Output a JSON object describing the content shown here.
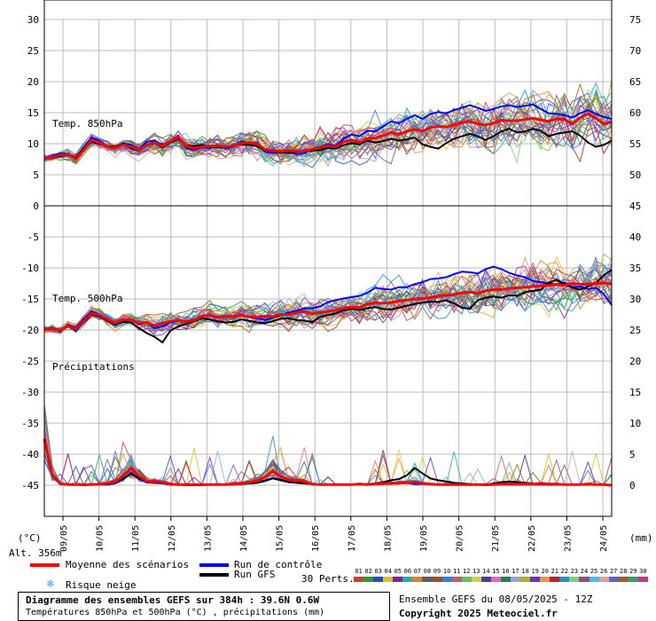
{
  "chart_data": {
    "type": "line",
    "title": "Diagramme des ensembles GEFS sur 384h : 39.6N 0.6W",
    "subtitle": "Températures 850hPa et 500hPa (°C) , précipitations (mm)",
    "dates": [
      "09/05",
      "10/05",
      "11/05",
      "12/05",
      "13/05",
      "14/05",
      "15/05",
      "16/05",
      "17/05",
      "18/05",
      "19/05",
      "20/05",
      "21/05",
      "22/05",
      "23/05",
      "24/05"
    ],
    "left_axis": {
      "unit": "(°C)",
      "ticks": [
        30,
        25,
        20,
        15,
        10,
        5,
        0,
        -5,
        -10,
        -15,
        -20,
        -25,
        -30,
        -35,
        -40,
        -45
      ]
    },
    "right_axis": {
      "unit": "(mm)",
      "ticks": [
        75,
        70,
        65,
        60,
        55,
        50,
        45,
        40,
        35,
        30,
        25,
        20,
        15,
        10,
        5,
        0
      ]
    },
    "panels": [
      {
        "name": "Temp. 850hPa",
        "ylim": [
          0,
          30
        ],
        "mean": [
          7.6,
          7.8,
          8.2,
          8.3,
          7.5,
          9.0,
          10.6,
          10.2,
          9.5,
          9.3,
          9.8,
          9.5,
          9.0,
          9.8,
          10.2,
          9.6,
          10.4,
          11.1,
          9.6,
          9.3,
          9.5,
          9.6,
          9.7,
          9.5,
          9.6,
          10.1,
          10.2,
          10.0,
          9.1,
          8.9,
          8.8,
          8.9,
          8.8,
          8.9,
          9.1,
          9.4,
          9.7,
          9.5,
          10.3,
          10.6,
          10.2,
          10.8,
          10.9,
          11.3,
          11.8,
          11.5,
          12.0,
          12.3,
          12.0,
          12.6,
          12.8,
          12.7,
          13.0,
          13.4,
          13.6,
          13.2,
          13.0,
          13.3,
          13.8,
          13.7,
          13.7,
          13.9,
          14.1,
          13.8,
          13.6,
          14.0,
          13.9,
          13.2,
          14.2,
          14.8,
          14.1,
          13.2,
          13.5
        ],
        "control": [
          7.6,
          8.0,
          8.5,
          8.4,
          7.5,
          9.4,
          11.0,
          10.5,
          9.6,
          9.2,
          10.1,
          9.8,
          9.1,
          10.3,
          10.5,
          9.8,
          10.3,
          11.3,
          9.3,
          9.0,
          9.4,
          9.3,
          9.8,
          9.2,
          9.5,
          10.4,
          10.1,
          10.2,
          8.7,
          8.5,
          8.6,
          8.7,
          8.3,
          8.5,
          9.2,
          9.5,
          9.9,
          9.7,
          10.8,
          11.5,
          11.2,
          12.1,
          12.0,
          12.8,
          13.6,
          13.3,
          14.0,
          14.6,
          14.0,
          14.8,
          15.1,
          14.9,
          15.4,
          15.8,
          16.2,
          15.8,
          15.3,
          15.6,
          16.0,
          16.2,
          15.9,
          16.1,
          16.3,
          15.6,
          14.9,
          14.8,
          14.6,
          14.2,
          14.9,
          15.4,
          14.8,
          14.3,
          14.0
        ],
        "gfs": [
          7.6,
          7.7,
          8.0,
          8.2,
          7.8,
          9.3,
          10.3,
          10.0,
          9.6,
          9.5,
          9.9,
          9.2,
          8.9,
          9.7,
          10.1,
          9.4,
          10.2,
          10.8,
          9.7,
          9.6,
          9.8,
          9.5,
          9.4,
          9.4,
          9.7,
          9.9,
          9.8,
          9.6,
          9.0,
          8.8,
          8.6,
          8.5,
          8.7,
          8.8,
          8.9,
          9.0,
          9.3,
          9.2,
          9.8,
          10.1,
          9.9,
          10.5,
          10.2,
          10.4,
          10.8,
          10.5,
          10.7,
          11.0,
          9.9,
          9.5,
          9.2,
          10.1,
          10.8,
          11.2,
          11.6,
          11.2,
          10.6,
          11.2,
          12.0,
          12.4,
          11.8,
          12.0,
          12.4,
          12.1,
          11.2,
          11.6,
          11.8,
          12.0,
          11.3,
          10.2,
          9.5,
          9.8,
          10.5
        ]
      },
      {
        "name": "Temp. 500hPa",
        "ylim": [
          -25,
          0
        ],
        "mean": [
          -19.9,
          -19.8,
          -20.1,
          -19.3,
          -19.9,
          -18.6,
          -17.3,
          -17.6,
          -18.3,
          -18.9,
          -18.3,
          -18.3,
          -18.9,
          -18.8,
          -19.3,
          -18.9,
          -18.6,
          -18.4,
          -18.7,
          -18.4,
          -17.8,
          -17.6,
          -18.0,
          -17.8,
          -17.9,
          -17.6,
          -17.9,
          -17.9,
          -17.8,
          -17.8,
          -17.5,
          -17.5,
          -17.2,
          -17.0,
          -17.4,
          -17.2,
          -17.0,
          -16.8,
          -16.5,
          -16.3,
          -16.4,
          -15.8,
          -15.6,
          -15.7,
          -15.6,
          -15.3,
          -15.2,
          -15.0,
          -14.9,
          -14.8,
          -14.5,
          -14.4,
          -14.3,
          -14.0,
          -13.9,
          -14.1,
          -13.7,
          -13.5,
          -13.5,
          -13.3,
          -13.2,
          -13.1,
          -13.0,
          -12.9,
          -12.8,
          -12.7,
          -12.8,
          -12.5,
          -12.6,
          -12.6,
          -12.5,
          -12.4,
          -12.6
        ],
        "control": [
          -19.9,
          -19.6,
          -20.3,
          -19.1,
          -19.7,
          -18.2,
          -17.0,
          -17.5,
          -18.4,
          -19.2,
          -18.6,
          -18.3,
          -19.1,
          -18.8,
          -19.7,
          -19.4,
          -18.8,
          -18.5,
          -18.6,
          -18.3,
          -17.8,
          -17.6,
          -17.9,
          -17.7,
          -17.8,
          -17.5,
          -17.9,
          -18.1,
          -18.4,
          -18.0,
          -17.6,
          -17.2,
          -16.9,
          -16.5,
          -16.5,
          -16.2,
          -15.5,
          -15.2,
          -14.9,
          -14.7,
          -14.5,
          -14.0,
          -13.2,
          -13.4,
          -13.5,
          -13.1,
          -13.1,
          -12.6,
          -12.3,
          -11.8,
          -11.7,
          -11.5,
          -11.0,
          -10.6,
          -10.7,
          -10.9,
          -10.2,
          -9.8,
          -10.2,
          -10.8,
          -11.2,
          -11.5,
          -12.1,
          -12.3,
          -12.5,
          -12.7,
          -12.4,
          -13.1,
          -13.0,
          -13.4,
          -13.2,
          -14.2,
          -16.0
        ],
        "gfs": [
          -19.8,
          -19.7,
          -20.0,
          -19.4,
          -20.1,
          -18.8,
          -17.5,
          -17.8,
          -18.5,
          -19.1,
          -18.7,
          -18.8,
          -19.7,
          -20.5,
          -21.1,
          -22.0,
          -20.1,
          -19.4,
          -19.0,
          -18.6,
          -18.1,
          -18.3,
          -18.6,
          -18.8,
          -18.7,
          -18.3,
          -18.5,
          -18.8,
          -18.9,
          -18.6,
          -18.2,
          -18.1,
          -18.4,
          -18.5,
          -18.7,
          -17.9,
          -17.6,
          -17.3,
          -16.8,
          -16.6,
          -16.8,
          -16.5,
          -16.3,
          -16.6,
          -16.7,
          -16.4,
          -16.1,
          -15.8,
          -15.6,
          -15.4,
          -15.5,
          -15.2,
          -15.7,
          -16.4,
          -16.6,
          -15.2,
          -14.8,
          -14.6,
          -14.8,
          -14.4,
          -14.5,
          -13.9,
          -13.7,
          -13.5,
          -12.4,
          -11.9,
          -12.6,
          -13.2,
          -13.5,
          -13.0,
          -12.4,
          -11.2,
          -10.3
        ]
      },
      {
        "name": "Précipitations",
        "ylim_mm": [
          0,
          20
        ],
        "mean": [
          7.5,
          1.8,
          0.3,
          0.1,
          0.1,
          0.1,
          0.1,
          0.2,
          0.3,
          0.6,
          1.5,
          2.8,
          1.5,
          0.7,
          0.6,
          0.5,
          0.2,
          0.1,
          0.1,
          0.1,
          0.1,
          0.1,
          0.1,
          0.1,
          0.2,
          0.3,
          0.5,
          0.7,
          1.3,
          2.3,
          1.4,
          0.9,
          0.8,
          0.6,
          0.2,
          0.1,
          0.1,
          0.1,
          0.1,
          0.1,
          0.2,
          0.1,
          0.2,
          0.3,
          0.3,
          0.4,
          0.4,
          0.5,
          0.3,
          0.2,
          0.1,
          0.1,
          0.1,
          0.1,
          0.1,
          0.1,
          0.1,
          0.1,
          0.2,
          0.2,
          0.2,
          0.2,
          0.2,
          0.3,
          0.2,
          0.2,
          0.1,
          0.1,
          0.1,
          0.2,
          0.1,
          0.1,
          0.0
        ],
        "control": [
          7.0,
          1.6,
          0.2,
          0.1,
          0.1,
          0.0,
          0.1,
          0.1,
          0.1,
          0.3,
          0.9,
          2.0,
          1.0,
          0.5,
          0.4,
          0.3,
          0.1,
          0.1,
          0.0,
          0.0,
          0.0,
          0.1,
          0.1,
          0.1,
          0.1,
          0.2,
          0.3,
          0.4,
          0.8,
          1.2,
          0.9,
          0.6,
          0.4,
          0.3,
          0.2,
          0.1,
          0.1,
          0.1,
          0.1,
          0.1,
          0.1,
          0.1,
          0.2,
          0.2,
          0.3,
          0.3,
          0.4,
          0.2,
          0.2,
          0.2,
          0.1,
          0.1,
          0.1,
          0.1,
          0.1,
          0.1,
          0.0,
          0.1,
          0.1,
          0.1,
          0.1,
          0.1,
          0.1,
          0.1,
          0.1,
          0.1,
          0.1,
          0.1,
          0.1,
          0.1,
          0.1,
          0.1,
          0.0
        ],
        "gfs": [
          7.2,
          1.7,
          0.2,
          0.1,
          0.1,
          0.1,
          0.1,
          0.2,
          0.2,
          0.5,
          1.1,
          1.8,
          1.2,
          0.7,
          0.5,
          0.4,
          0.1,
          0.1,
          0.1,
          0.1,
          0.1,
          0.1,
          0.1,
          0.1,
          0.1,
          0.2,
          0.3,
          0.4,
          0.7,
          1.1,
          0.8,
          0.5,
          0.4,
          0.3,
          0.2,
          0.1,
          0.1,
          0.1,
          0.1,
          0.1,
          0.2,
          0.2,
          0.3,
          0.5,
          0.8,
          1.0,
          1.6,
          2.8,
          1.9,
          1.1,
          0.8,
          0.6,
          0.4,
          0.3,
          0.2,
          0.1,
          0.1,
          0.3,
          0.5,
          0.6,
          0.5,
          0.4,
          0.3,
          0.2,
          0.1,
          0.1,
          0.1,
          0.1,
          0.1,
          0.1,
          0.1,
          0.1,
          0.0
        ]
      }
    ],
    "perturbations": [
      "01",
      "02",
      "03",
      "04",
      "05",
      "06",
      "07",
      "08",
      "09",
      "10",
      "11",
      "12",
      "13",
      "14",
      "15",
      "16",
      "17",
      "18",
      "19",
      "20",
      "21",
      "22",
      "23",
      "24",
      "25",
      "26",
      "27",
      "28",
      "29",
      "30"
    ],
    "perturbation_colors": [
      "#d04030",
      "#28a028",
      "#2050d0",
      "#e0c020",
      "#8020a0",
      "#20b0b0",
      "#e08020",
      "#606060",
      "#a05020",
      "#3080f0",
      "#c06060",
      "#60c060",
      "#d0d040",
      "#4040a0",
      "#f060c0",
      "#208050",
      "#a0a0e0",
      "#b0b020",
      "#7030c0",
      "#f09040",
      "#c02020",
      "#2090d0",
      "#80d080",
      "#905080",
      "#40c0f0",
      "#e0a0a0",
      "#6060d0",
      "#a06020",
      "#30a070",
      "#d03080"
    ],
    "text": {
      "panel1_label": "Temp. 850hPa",
      "panel2_label": "Temp. 500hPa",
      "panel3_label": "Précipitations",
      "left_unit": "(°C)",
      "right_unit": "(mm)",
      "altitude": "Alt. 356m"
    }
  },
  "legend": {
    "mean": "Moyenne des scénarios",
    "control": "Run de contrôle",
    "gfs": "Run GFS",
    "snow": "Risque neige",
    "perts_label": "30 Perts.",
    "ensemble_info": "Ensemble GEFS du 08/05/2025 - 12Z",
    "copyright": "Copyright 2025 Meteociel.fr",
    "colors": {
      "mean": "#ff0000",
      "control": "#0000ff",
      "gfs": "#000000",
      "snow": "#3399ff"
    }
  },
  "footer": {
    "title": "Diagramme des ensembles GEFS sur 384h : 39.6N 0.6W",
    "subtitle": "Températures 850hPa et 500hPa (°C) , précipitations (mm)"
  }
}
